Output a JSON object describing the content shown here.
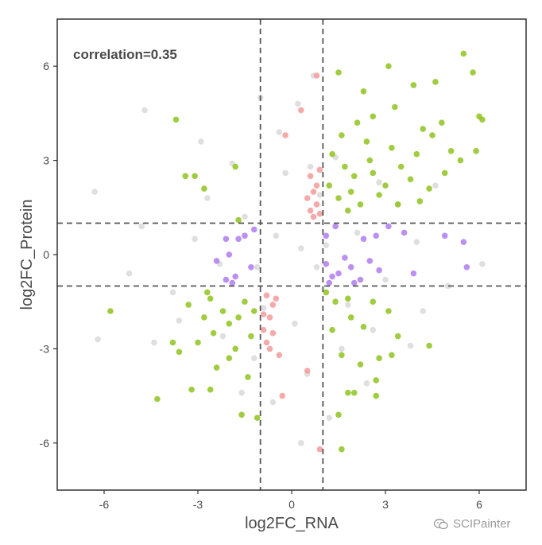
{
  "chart_data": {
    "type": "scatter",
    "annotation": "correlation=0.35",
    "xlabel": "log2FC_RNA",
    "ylabel": "log2FC_Protein",
    "xlim": [
      -7.5,
      7.5
    ],
    "ylim": [
      -7.5,
      7.5
    ],
    "xticks": [
      -6,
      -3,
      0,
      3,
      6
    ],
    "yticks": [
      -6,
      -3,
      0,
      3,
      6
    ],
    "tick_labels": {
      "x": [
        "-6",
        "-3",
        "0",
        "3",
        "6"
      ],
      "y": [
        "-6",
        "-3",
        "0",
        "3",
        "6"
      ]
    },
    "thresholds": {
      "x": [
        -1,
        1
      ],
      "y": [
        -1,
        1
      ]
    },
    "grid": false,
    "legend": "none",
    "colors": {
      "both_significant": "#8fc31f",
      "rna_only": "#f59a9a",
      "protein_only": "#b07cf0",
      "not_significant": "#dcdcdc"
    },
    "series": [
      {
        "values": [
          [
            0.3,
            0.2
          ],
          [
            -0.5,
            0.6
          ],
          [
            0.8,
            -0.4
          ],
          [
            -1.5,
            1.2
          ],
          [
            1.8,
            -1.6
          ],
          [
            -2.3,
            -0.3
          ],
          [
            2.1,
            0.7
          ],
          [
            0.1,
            -2.2
          ],
          [
            -0.2,
            2.6
          ],
          [
            3.0,
            -0.8
          ],
          [
            -3.1,
            0.5
          ],
          [
            0.9,
            1.9
          ],
          [
            -0.9,
            -1.7
          ],
          [
            1.4,
            3.1
          ],
          [
            -1.2,
            -3.3
          ],
          [
            2.6,
            -2.4
          ],
          [
            -2.7,
            1.8
          ],
          [
            4.0,
            0.4
          ],
          [
            -3.8,
            -1.2
          ],
          [
            0.5,
            -3.8
          ],
          [
            -0.4,
            3.9
          ],
          [
            1.6,
            -3.0
          ],
          [
            -1.9,
            2.9
          ],
          [
            3.4,
            1.6
          ],
          [
            -3.6,
            -2.1
          ],
          [
            5.0,
            -1.0
          ],
          [
            -4.8,
            0.9
          ],
          [
            0.2,
            4.8
          ],
          [
            -0.6,
            -4.7
          ],
          [
            2.8,
            2.3
          ],
          [
            -2.2,
            -2.6
          ],
          [
            4.6,
            2.2
          ],
          [
            -4.4,
            -2.8
          ],
          [
            1.2,
            -5.2
          ],
          [
            -1.0,
            5.0
          ],
          [
            3.8,
            -2.9
          ],
          [
            -5.2,
            -0.6
          ],
          [
            6.1,
            -0.3
          ],
          [
            -6.3,
            2.0
          ],
          [
            -6.2,
            -2.7
          ],
          [
            -4.7,
            4.6
          ],
          [
            0.7,
            5.7
          ],
          [
            0.3,
            -6.0
          ],
          [
            2.4,
            -4.1
          ],
          [
            -2.9,
            3.6
          ],
          [
            4.2,
            -1.8
          ],
          [
            -1.6,
            -4.4
          ],
          [
            1.1,
            0.3
          ],
          [
            -1.1,
            -0.4
          ],
          [
            0.6,
            2.8
          ]
        ]
      },
      {
        "values": [
          [
            0.8,
            5.7
          ],
          [
            0.3,
            4.6
          ],
          [
            0.6,
            2.5
          ],
          [
            0.7,
            2.0
          ],
          [
            0.8,
            1.6
          ],
          [
            0.9,
            1.3
          ],
          [
            0.5,
            1.8
          ],
          [
            0.7,
            1.2
          ],
          [
            0.9,
            2.7
          ],
          [
            0.6,
            1.4
          ],
          [
            -0.8,
            -1.3
          ],
          [
            -0.6,
            -1.6
          ],
          [
            -0.7,
            -2.0
          ],
          [
            -0.9,
            -2.4
          ],
          [
            -0.8,
            -2.8
          ],
          [
            -0.5,
            -1.4
          ],
          [
            -0.7,
            -3.0
          ],
          [
            -0.4,
            -3.2
          ],
          [
            -0.3,
            -4.5
          ],
          [
            -0.6,
            -2.5
          ],
          [
            -0.2,
            3.8
          ],
          [
            0.5,
            -3.7
          ],
          [
            0.9,
            -6.2
          ],
          [
            -0.9,
            -1.9
          ],
          [
            0.8,
            2.2
          ]
        ]
      },
      {
        "values": [
          [
            1.2,
            -0.9
          ],
          [
            1.5,
            -0.6
          ],
          [
            1.9,
            -0.4
          ],
          [
            2.2,
            -0.8
          ],
          [
            2.5,
            -0.2
          ],
          [
            1.1,
            -0.3
          ],
          [
            1.7,
            -0.1
          ],
          [
            2.8,
            -0.5
          ],
          [
            1.3,
            -0.7
          ],
          [
            2.0,
            -0.9
          ],
          [
            1.4,
            0.9
          ],
          [
            1.1,
            0.6
          ],
          [
            2.3,
            0.5
          ],
          [
            2.7,
            0.6
          ],
          [
            3.1,
            0.9
          ],
          [
            3.6,
            0.7
          ],
          [
            4.9,
            0.6
          ],
          [
            5.5,
            0.4
          ],
          [
            5.6,
            -0.4
          ],
          [
            3.9,
            -0.6
          ],
          [
            -1.2,
            0.8
          ],
          [
            -1.5,
            0.6
          ],
          [
            -1.8,
            -0.7
          ],
          [
            -2.1,
            -0.8
          ],
          [
            -1.3,
            -0.4
          ],
          [
            -1.7,
            0.5
          ],
          [
            -2.1,
            0.5
          ],
          [
            -2.4,
            -0.2
          ],
          [
            -1.9,
            -0.9
          ],
          [
            -2.0,
            0.0
          ]
        ]
      },
      {
        "values": [
          [
            1.5,
            1.8
          ],
          [
            2.0,
            2.5
          ],
          [
            2.5,
            3.0
          ],
          [
            3.0,
            2.2
          ],
          [
            1.8,
            1.4
          ],
          [
            2.2,
            1.6
          ],
          [
            2.8,
            1.9
          ],
          [
            3.5,
            2.8
          ],
          [
            4.0,
            3.2
          ],
          [
            4.5,
            3.8
          ],
          [
            1.3,
            3.2
          ],
          [
            1.7,
            2.8
          ],
          [
            2.4,
            3.6
          ],
          [
            3.2,
            3.4
          ],
          [
            3.8,
            2.4
          ],
          [
            4.4,
            2.1
          ],
          [
            4.9,
            2.6
          ],
          [
            5.4,
            3.0
          ],
          [
            6.0,
            4.4
          ],
          [
            5.8,
            5.8
          ],
          [
            5.5,
            6.4
          ],
          [
            4.6,
            5.5
          ],
          [
            3.9,
            5.4
          ],
          [
            3.1,
            6.0
          ],
          [
            2.3,
            5.2
          ],
          [
            1.5,
            5.8
          ],
          [
            2.6,
            4.4
          ],
          [
            3.3,
            4.7
          ],
          [
            4.8,
            4.2
          ],
          [
            5.1,
            3.3
          ],
          [
            1.2,
            2.2
          ],
          [
            1.9,
            2.0
          ],
          [
            2.6,
            2.6
          ],
          [
            3.4,
            1.6
          ],
          [
            4.1,
            1.7
          ],
          [
            4.2,
            4.0
          ],
          [
            1.6,
            3.8
          ],
          [
            2.1,
            4.2
          ],
          [
            5.9,
            3.3
          ],
          [
            6.1,
            4.3
          ],
          [
            -1.5,
            -1.5
          ],
          [
            -2.0,
            -2.2
          ],
          [
            -2.5,
            -2.5
          ],
          [
            -1.8,
            -3.0
          ],
          [
            -1.3,
            -2.6
          ],
          [
            -2.2,
            -1.8
          ],
          [
            -1.7,
            -2.0
          ],
          [
            -2.6,
            -1.4
          ],
          [
            -1.2,
            -1.8
          ],
          [
            -2.0,
            -3.3
          ],
          [
            -2.8,
            -2.0
          ],
          [
            -3.0,
            -2.8
          ],
          [
            -3.8,
            -2.8
          ],
          [
            -4.3,
            -4.6
          ],
          [
            -3.2,
            -4.3
          ],
          [
            -2.6,
            -4.3
          ],
          [
            -1.6,
            -5.1
          ],
          [
            -1.1,
            -5.2
          ],
          [
            -2.4,
            -3.6
          ],
          [
            -1.4,
            -3.9
          ],
          [
            -3.4,
            2.5
          ],
          [
            -3.1,
            2.5
          ],
          [
            -3.7,
            4.3
          ],
          [
            -2.8,
            2.1
          ],
          [
            -1.8,
            2.8
          ],
          [
            -1.7,
            1.1
          ],
          [
            -5.8,
            -1.8
          ],
          [
            -3.3,
            -1.6
          ],
          [
            -2.7,
            -1.2
          ],
          [
            -3.6,
            -3.1
          ],
          [
            1.4,
            -1.5
          ],
          [
            1.9,
            -2.0
          ],
          [
            2.3,
            -2.3
          ],
          [
            1.6,
            -3.2
          ],
          [
            1.8,
            -4.4
          ],
          [
            1.5,
            -5.1
          ],
          [
            1.6,
            -6.2
          ],
          [
            2.2,
            -3.5
          ],
          [
            2.8,
            -3.3
          ],
          [
            3.1,
            -1.8
          ],
          [
            3.4,
            -2.6
          ],
          [
            4.4,
            -2.9
          ],
          [
            2.7,
            -4.0
          ],
          [
            2.0,
            -4.4
          ],
          [
            2.7,
            -4.5
          ],
          [
            1.1,
            -1.2
          ],
          [
            1.3,
            -2.4
          ],
          [
            1.8,
            -1.4
          ],
          [
            2.6,
            -1.5
          ],
          [
            3.2,
            -3.2
          ]
        ]
      }
    ]
  },
  "watermark": {
    "text": "SCIPainter",
    "icon": "wechat-icon"
  }
}
